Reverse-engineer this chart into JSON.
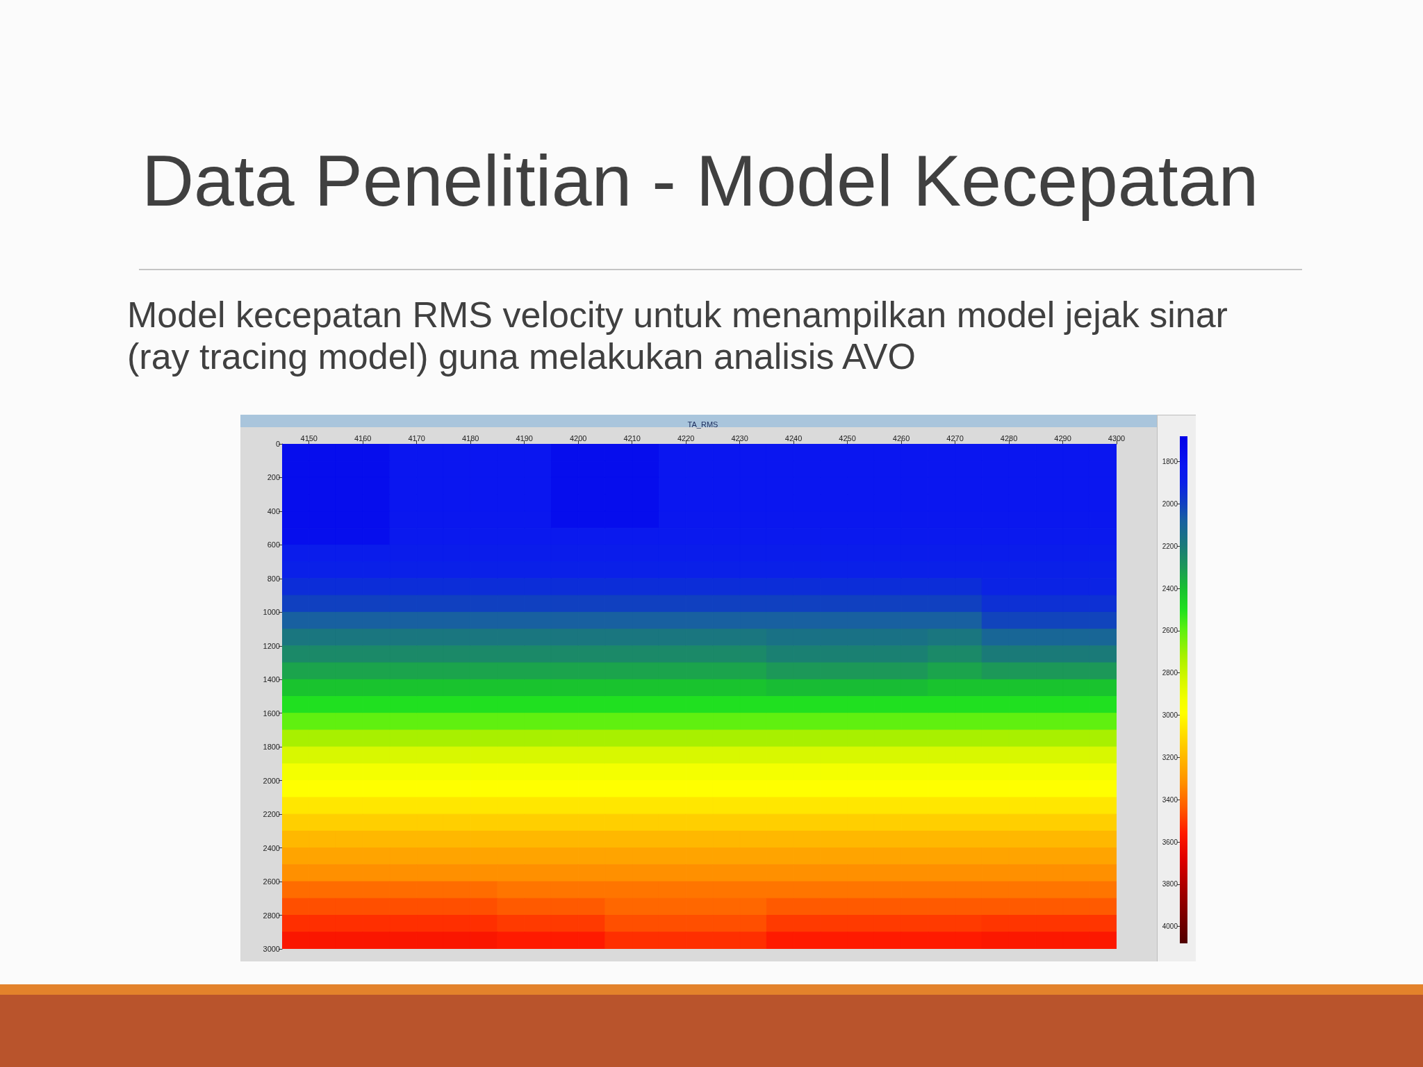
{
  "chart_data": {
    "type": "heatmap",
    "title": "Data Penelitian - Model Kecepatan",
    "subtitle": "Model kecepatan RMS velocity untuk menampilkan model jejak sinar (ray tracing model) guna melakukan analisis AVO",
    "annotations": [
      "TA_RMS"
    ],
    "x": [
      4147.5,
      4152.5,
      4157.5,
      4162.5,
      4167.5,
      4172.5,
      4177.5,
      4182.5,
      4187.5,
      4192.5,
      4197.5,
      4202.5,
      4207.5,
      4212.5,
      4217.5,
      4222.5,
      4227.5,
      4232.5,
      4237.5,
      4242.5,
      4247.5,
      4252.5,
      4257.5,
      4262.5,
      4267.5,
      4272.5,
      4277.5,
      4282.5,
      4287.5,
      4292.5,
      4297.5
    ],
    "xlim": [
      4145,
      4300
    ],
    "xticks": [
      4150,
      4160,
      4170,
      4180,
      4190,
      4200,
      4210,
      4220,
      4230,
      4240,
      4250,
      4260,
      4270,
      4280,
      4290,
      4300
    ],
    "ylim": [
      3000,
      0
    ],
    "yticks": [
      0,
      200,
      400,
      600,
      800,
      1000,
      1200,
      1400,
      1600,
      1800,
      2000,
      2200,
      2400,
      2600,
      2800,
      3000
    ],
    "clim": [
      1680,
      4080
    ],
    "cticks": [
      1800,
      2000,
      2200,
      2400,
      2600,
      2800,
      3000,
      3200,
      3400,
      3600,
      3800,
      4000
    ],
    "cells": [
      [
        1760,
        1760,
        1760,
        1760,
        1820,
        1820,
        1820,
        1820,
        1820,
        1820,
        1760,
        1760,
        1760,
        1760,
        1820,
        1820,
        1820,
        1820,
        1820,
        1820,
        1820,
        1820,
        1820,
        1820,
        1820,
        1820,
        1820,
        1820,
        1820,
        1820,
        1820
      ],
      [
        1760,
        1760,
        1760,
        1760,
        1820,
        1820,
        1820,
        1820,
        1820,
        1820,
        1760,
        1760,
        1760,
        1760,
        1820,
        1820,
        1820,
        1820,
        1820,
        1820,
        1820,
        1820,
        1820,
        1820,
        1820,
        1820,
        1820,
        1820,
        1820,
        1820,
        1820
      ],
      [
        1760,
        1760,
        1760,
        1760,
        1820,
        1820,
        1820,
        1820,
        1820,
        1820,
        1760,
        1760,
        1760,
        1760,
        1820,
        1820,
        1820,
        1820,
        1820,
        1820,
        1820,
        1820,
        1820,
        1820,
        1820,
        1820,
        1820,
        1820,
        1820,
        1820,
        1820
      ],
      [
        1760,
        1760,
        1760,
        1760,
        1820,
        1820,
        1820,
        1820,
        1820,
        1820,
        1760,
        1760,
        1760,
        1760,
        1820,
        1820,
        1820,
        1820,
        1820,
        1820,
        1820,
        1820,
        1820,
        1820,
        1820,
        1820,
        1820,
        1820,
        1820,
        1820,
        1820
      ],
      [
        1760,
        1760,
        1760,
        1760,
        1830,
        1830,
        1830,
        1830,
        1830,
        1830,
        1760,
        1760,
        1760,
        1760,
        1830,
        1830,
        1830,
        1830,
        1830,
        1830,
        1830,
        1830,
        1830,
        1830,
        1830,
        1830,
        1830,
        1830,
        1830,
        1830,
        1830
      ],
      [
        1770,
        1770,
        1770,
        1770,
        1840,
        1840,
        1840,
        1840,
        1840,
        1840,
        1840,
        1840,
        1840,
        1840,
        1840,
        1840,
        1840,
        1840,
        1840,
        1840,
        1840,
        1840,
        1840,
        1840,
        1840,
        1840,
        1840,
        1840,
        1840,
        1840,
        1840
      ],
      [
        1870,
        1870,
        1870,
        1870,
        1870,
        1870,
        1870,
        1870,
        1870,
        1870,
        1870,
        1870,
        1870,
        1870,
        1870,
        1870,
        1870,
        1870,
        1870,
        1870,
        1870,
        1870,
        1870,
        1870,
        1870,
        1870,
        1870,
        1870,
        1870,
        1870,
        1870
      ],
      [
        1900,
        1900,
        1900,
        1900,
        1900,
        1900,
        1900,
        1900,
        1900,
        1900,
        1900,
        1900,
        1900,
        1900,
        1900,
        1900,
        1900,
        1900,
        1900,
        1900,
        1900,
        1900,
        1900,
        1900,
        1900,
        1900,
        1900,
        1900,
        1900,
        1900,
        1900
      ],
      [
        1940,
        1940,
        1940,
        1940,
        1940,
        1940,
        1940,
        1940,
        1940,
        1940,
        1940,
        1940,
        1940,
        1940,
        1940,
        1940,
        1940,
        1940,
        1940,
        1940,
        1940,
        1940,
        1940,
        1940,
        1940,
        1940,
        1910,
        1910,
        1910,
        1910,
        1910
      ],
      [
        2000,
        2000,
        2000,
        2000,
        2000,
        2000,
        2000,
        2000,
        2000,
        2000,
        2000,
        2000,
        2000,
        2000,
        2000,
        2000,
        2000,
        2000,
        2000,
        2000,
        2000,
        2000,
        2000,
        2000,
        2000,
        2000,
        1950,
        1950,
        1950,
        1950,
        1950
      ],
      [
        2080,
        2080,
        2080,
        2080,
        2080,
        2080,
        2080,
        2080,
        2080,
        2080,
        2080,
        2080,
        2080,
        2080,
        2080,
        2080,
        2080,
        2080,
        2080,
        2080,
        2080,
        2080,
        2080,
        2080,
        2080,
        2080,
        2010,
        2010,
        2010,
        2010,
        2010
      ],
      [
        2180,
        2180,
        2180,
        2180,
        2180,
        2180,
        2180,
        2180,
        2180,
        2180,
        2180,
        2180,
        2180,
        2180,
        2180,
        2180,
        2180,
        2180,
        2160,
        2160,
        2160,
        2160,
        2160,
        2160,
        2180,
        2180,
        2110,
        2110,
        2110,
        2110,
        2110
      ],
      [
        2250,
        2250,
        2250,
        2250,
        2250,
        2250,
        2250,
        2250,
        2250,
        2250,
        2250,
        2250,
        2250,
        2250,
        2250,
        2250,
        2250,
        2250,
        2220,
        2220,
        2220,
        2220,
        2220,
        2220,
        2250,
        2250,
        2200,
        2200,
        2200,
        2200,
        2200
      ],
      [
        2330,
        2330,
        2330,
        2330,
        2330,
        2330,
        2330,
        2330,
        2330,
        2330,
        2330,
        2330,
        2330,
        2330,
        2330,
        2330,
        2330,
        2330,
        2300,
        2300,
        2300,
        2300,
        2300,
        2300,
        2330,
        2330,
        2300,
        2300,
        2300,
        2300,
        2300
      ],
      [
        2410,
        2410,
        2410,
        2410,
        2410,
        2410,
        2410,
        2410,
        2410,
        2410,
        2410,
        2410,
        2410,
        2410,
        2410,
        2410,
        2410,
        2410,
        2390,
        2390,
        2390,
        2390,
        2390,
        2390,
        2410,
        2410,
        2410,
        2410,
        2410,
        2410,
        2410
      ],
      [
        2500,
        2500,
        2500,
        2500,
        2500,
        2500,
        2500,
        2500,
        2500,
        2500,
        2500,
        2500,
        2500,
        2500,
        2500,
        2500,
        2500,
        2500,
        2500,
        2500,
        2500,
        2500,
        2500,
        2500,
        2500,
        2500,
        2500,
        2500,
        2500,
        2500,
        2500
      ],
      [
        2600,
        2600,
        2600,
        2600,
        2600,
        2600,
        2600,
        2600,
        2600,
        2600,
        2600,
        2600,
        2600,
        2600,
        2600,
        2600,
        2600,
        2600,
        2600,
        2600,
        2600,
        2600,
        2600,
        2600,
        2600,
        2600,
        2600,
        2600,
        2600,
        2600,
        2600
      ],
      [
        2720,
        2720,
        2720,
        2720,
        2720,
        2720,
        2720,
        2720,
        2720,
        2720,
        2720,
        2720,
        2720,
        2720,
        2720,
        2720,
        2720,
        2720,
        2720,
        2720,
        2720,
        2720,
        2720,
        2720,
        2720,
        2720,
        2720,
        2720,
        2720,
        2720,
        2720
      ],
      [
        2840,
        2840,
        2840,
        2840,
        2840,
        2840,
        2840,
        2840,
        2840,
        2840,
        2840,
        2840,
        2840,
        2840,
        2840,
        2840,
        2840,
        2840,
        2840,
        2840,
        2840,
        2840,
        2840,
        2840,
        2840,
        2840,
        2840,
        2840,
        2840,
        2840,
        2840
      ],
      [
        2930,
        2930,
        2930,
        2930,
        2930,
        2930,
        2930,
        2930,
        2930,
        2930,
        2930,
        2930,
        2930,
        2930,
        2930,
        2930,
        2930,
        2930,
        2930,
        2930,
        2930,
        2930,
        2930,
        2930,
        2930,
        2930,
        2930,
        2930,
        2930,
        2930,
        2930
      ],
      [
        2990,
        2990,
        2990,
        2990,
        2990,
        2990,
        2990,
        2990,
        2990,
        2990,
        2990,
        2990,
        2990,
        2990,
        2990,
        2990,
        2990,
        2990,
        2990,
        2990,
        2990,
        2990,
        2990,
        2990,
        2990,
        2990,
        2990,
        2990,
        2990,
        2990,
        2990
      ],
      [
        3060,
        3060,
        3060,
        3060,
        3060,
        3060,
        3060,
        3060,
        3060,
        3060,
        3060,
        3060,
        3060,
        3060,
        3060,
        3060,
        3060,
        3060,
        3060,
        3060,
        3060,
        3060,
        3060,
        3060,
        3060,
        3060,
        3060,
        3060,
        3060,
        3060,
        3060
      ],
      [
        3130,
        3130,
        3130,
        3130,
        3130,
        3130,
        3130,
        3130,
        3130,
        3130,
        3130,
        3130,
        3130,
        3130,
        3130,
        3130,
        3130,
        3130,
        3130,
        3130,
        3130,
        3130,
        3130,
        3130,
        3130,
        3130,
        3130,
        3130,
        3130,
        3130,
        3130
      ],
      [
        3200,
        3200,
        3200,
        3200,
        3200,
        3200,
        3200,
        3200,
        3200,
        3200,
        3200,
        3200,
        3200,
        3200,
        3200,
        3200,
        3200,
        3200,
        3200,
        3200,
        3200,
        3200,
        3200,
        3200,
        3200,
        3200,
        3200,
        3200,
        3200,
        3200,
        3200
      ],
      [
        3260,
        3260,
        3260,
        3260,
        3260,
        3260,
        3260,
        3260,
        3260,
        3260,
        3260,
        3260,
        3260,
        3260,
        3260,
        3260,
        3260,
        3260,
        3260,
        3260,
        3260,
        3260,
        3260,
        3260,
        3260,
        3260,
        3260,
        3260,
        3260,
        3260,
        3260
      ],
      [
        3320,
        3320,
        3320,
        3320,
        3320,
        3320,
        3320,
        3320,
        3320,
        3320,
        3320,
        3320,
        3320,
        3320,
        3320,
        3320,
        3320,
        3320,
        3320,
        3320,
        3320,
        3320,
        3320,
        3320,
        3320,
        3320,
        3320,
        3320,
        3320,
        3320,
        3320
      ],
      [
        3400,
        3400,
        3400,
        3400,
        3400,
        3400,
        3400,
        3400,
        3380,
        3380,
        3380,
        3380,
        3380,
        3380,
        3380,
        3380,
        3380,
        3380,
        3380,
        3380,
        3380,
        3380,
        3380,
        3380,
        3380,
        3380,
        3380,
        3380,
        3380,
        3380,
        3380
      ],
      [
        3460,
        3460,
        3460,
        3460,
        3460,
        3460,
        3460,
        3460,
        3440,
        3440,
        3440,
        3440,
        3410,
        3410,
        3410,
        3410,
        3410,
        3410,
        3440,
        3440,
        3440,
        3440,
        3440,
        3440,
        3440,
        3440,
        3440,
        3440,
        3440,
        3440,
        3440
      ],
      [
        3520,
        3520,
        3520,
        3520,
        3520,
        3520,
        3520,
        3520,
        3500,
        3500,
        3500,
        3500,
        3460,
        3460,
        3460,
        3460,
        3460,
        3460,
        3500,
        3500,
        3500,
        3500,
        3500,
        3500,
        3500,
        3500,
        3510,
        3510,
        3510,
        3510,
        3510
      ],
      [
        3580,
        3580,
        3580,
        3580,
        3580,
        3580,
        3580,
        3580,
        3560,
        3560,
        3560,
        3560,
        3520,
        3520,
        3520,
        3520,
        3520,
        3520,
        3560,
        3560,
        3560,
        3560,
        3560,
        3560,
        3560,
        3560,
        3570,
        3570,
        3570,
        3570,
        3570
      ]
    ]
  }
}
